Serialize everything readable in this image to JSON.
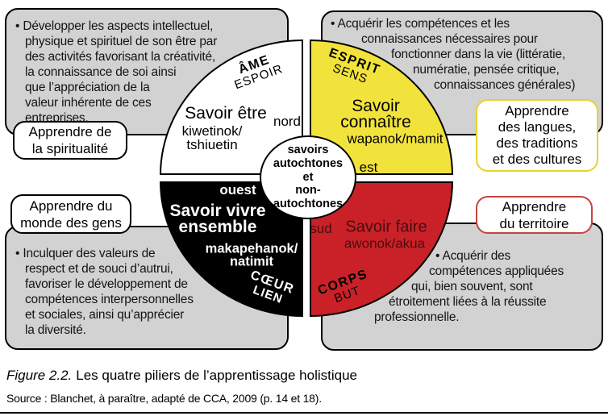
{
  "figure": {
    "caption_label": "Figure 2.2.",
    "caption_text": "Les quatre piliers de l’apprentissage holistique",
    "source": "Source : Blanchet, à paraître, adapté de CCA, 2009 (p. 14 et 18)."
  },
  "colors": {
    "yellow": "#f2e33c",
    "red": "#c92127",
    "wheel_black": "#000000",
    "maroon": "#470d10",
    "box_gray": "#d2d2d2",
    "callout_yellow": "#e8d22a",
    "callout_red": "#c5453e"
  },
  "boxes": {
    "top_left": {
      "lines": [
        "• Développer les aspects intellectuel,",
        "physique et spirituel de son être par",
        "des activités favorisant la créativité,",
        "la connaissance de soi ainsi",
        "que l’appréciation de la",
        "valeur inhérente de ces",
        "entreprises."
      ]
    },
    "top_right": {
      "lines": [
        "• Acquérir les compétences et les",
        "connaissances nécessaires pour",
        "fonctionner dans la vie (littératie,",
        "numératie, pensée critique,",
        "connaissances générales)"
      ]
    },
    "bottom_left": {
      "lines": [
        "• Inculquer des valeurs de",
        "respect et de souci d’autrui,",
        "favoriser le développement de",
        "compétences interpersonnelles",
        "et sociales, ainsi qu’apprécier",
        "la diversité."
      ]
    },
    "bottom_right": {
      "lines": [
        "• Acquérir des",
        "compétences appliquées",
        "qui, bien souvent, sont",
        "étroitement liées à la réussite",
        "professionnelle."
      ]
    }
  },
  "callouts": {
    "spirituality": {
      "lines": [
        "Apprendre de",
        "la spiritualité"
      ]
    },
    "people": {
      "lines": [
        "Apprendre du",
        "monde des gens"
      ]
    },
    "languages": {
      "lines": [
        "Apprendre",
        "des langues,",
        "des traditions",
        "et des cultures"
      ]
    },
    "territory": {
      "lines": [
        "Apprendre",
        "du territoire"
      ]
    }
  },
  "wheel": {
    "center": {
      "lines": [
        "savoirs",
        "autochtones",
        "et",
        "non-",
        "autochtones"
      ]
    },
    "north": {
      "dimension": "ÂME",
      "aspect": "ESPOIR",
      "pillar_lines": [
        "Savoir être"
      ],
      "indigenous_lines": [
        "kiwetinok/",
        "tshiuetin"
      ],
      "direction": "nord"
    },
    "east": {
      "dimension": "ESPRIT",
      "aspect": "SENS",
      "pillar_lines": [
        "Savoir",
        "connaître"
      ],
      "indigenous_lines": [
        "wapanok/mamit"
      ],
      "direction": "est"
    },
    "west": {
      "dimension": "CŒUR",
      "aspect": "LIEN",
      "pillar_lines": [
        "Savoir vivre",
        "ensemble"
      ],
      "indigenous_lines": [
        "makapehanok/",
        "natimit"
      ],
      "direction": "ouest"
    },
    "south": {
      "dimension": "CORPS",
      "aspect": "BUT",
      "pillar_lines": [
        "Savoir faire"
      ],
      "indigenous_lines": [
        "awonok/akua"
      ],
      "direction": "sud"
    }
  }
}
